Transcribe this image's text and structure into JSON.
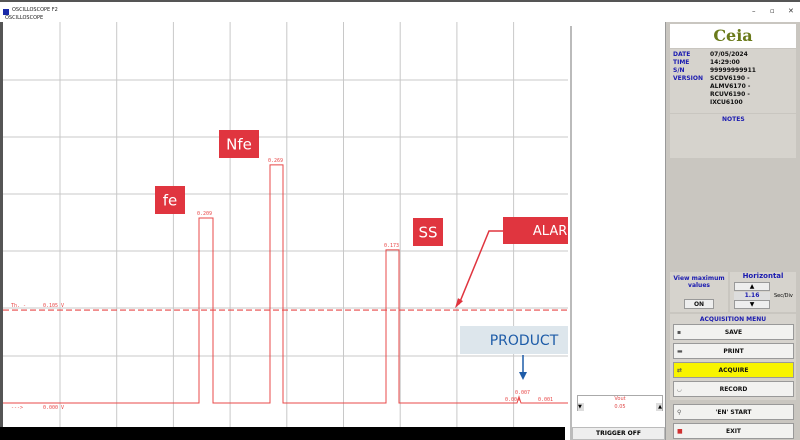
{
  "window": {
    "title": "OSCILLOSCOPE F2",
    "subtitle": "OSCILLOSCOPE"
  },
  "annotations": {
    "fe": "fe",
    "nfe": "Nfe",
    "ss": "SS",
    "alarm": "ALARM THRESHOLD",
    "product": "PRODUCT"
  },
  "chart_data": {
    "type": "line",
    "threshold": {
      "label": "Th. -",
      "value": 0.105,
      "unit": "V",
      "text": "0.105 V"
    },
    "baseline": {
      "label": "--->",
      "value": 0.0,
      "text": "0.000 V"
    },
    "peaks": [
      {
        "name": "fe",
        "value": 0.209,
        "label": "0.209"
      },
      {
        "name": "Nfe",
        "value": 0.269,
        "label": "0.269"
      },
      {
        "name": "SS",
        "value": 0.173,
        "label": "0.173"
      },
      {
        "name": "PRODUCT",
        "value": 0.007,
        "label": "0.007"
      }
    ],
    "small_labels": [
      "0.004",
      "0.001"
    ],
    "grid": true,
    "colors": {
      "trace": "#e84848",
      "grid": "#c8c8c8",
      "annotation": "#e0353f",
      "product": "#1e5ca8"
    }
  },
  "right": {
    "vout_label": "Vout",
    "vout_value": "0.05",
    "trigger": "TRIGGER OFF"
  },
  "info": {
    "logo": "Ceia",
    "rows": [
      {
        "k": "DATE",
        "v": "07/05/2024"
      },
      {
        "k": "TIME",
        "v": "14:29:00"
      },
      {
        "k": "S/N",
        "v": "99999999911"
      },
      {
        "k": "VERSION",
        "v": "SCDV6190 -"
      },
      {
        "k": "",
        "v": "ALMV6170 -"
      },
      {
        "k": "",
        "v": "RCUV6190 -"
      },
      {
        "k": "",
        "v": "IXCU6100"
      }
    ],
    "notes": "NOTES"
  },
  "controls": {
    "view_max": "View maximum values",
    "on": "ON",
    "horizontal": "Horizontal",
    "h_value": "1.16",
    "h_unit": "Sec/Div",
    "up": "▲",
    "down": "▼"
  },
  "menu": {
    "title": "ACQUISITION MENU",
    "buttons": [
      "SAVE",
      "PRINT",
      "ACQUIRE",
      "RECORD"
    ],
    "en_start": "'EN' START",
    "exit": "EXIT"
  }
}
